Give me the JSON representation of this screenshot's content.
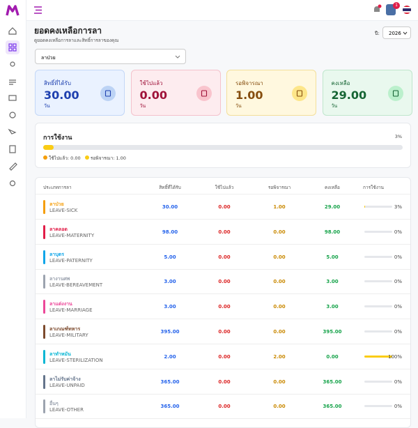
{
  "header": {
    "avatar_badge": "1"
  },
  "page": {
    "title": "ยอดคงเหลือการลา",
    "subtitle": "ดูยอดคงเหลือการลาและสิทธิ์การลาของคุณ",
    "year_label": "ปี:",
    "year": "2026",
    "leave_type_select": "ลาป่วย"
  },
  "cards": [
    {
      "label": "สิทธิ์ที่ได้รับ",
      "value": "30.00",
      "unit": "วัน",
      "color": "#1e40af",
      "bg": "#eaf2ff",
      "border": "#c3d7f7",
      "icon_bg": "#bcd3f5"
    },
    {
      "label": "ใช้ไปแล้ว",
      "value": "0.00",
      "unit": "วัน",
      "color": "#9f1239",
      "bg": "#fdecef",
      "border": "#f4c2cc",
      "icon_bg": "#f9c4cd"
    },
    {
      "label": "รอพิจารณา",
      "value": "1.00",
      "unit": "วัน",
      "color": "#854d0e",
      "bg": "#fff8df",
      "border": "#f3df9a",
      "icon_bg": "#fde68a"
    },
    {
      "label": "คงเหลือ",
      "value": "29.00",
      "unit": "วัน",
      "color": "#166534",
      "bg": "#e9f8ee",
      "border": "#bfe6cc",
      "icon_bg": "#bbf0cc"
    }
  ],
  "usage": {
    "title": "การใช้งาน",
    "percent": {
      "value": 3,
      "label": "3%"
    },
    "legend": [
      "ใช้ไปแล้ว: 0.00",
      "รอพิจารณา: 1.00"
    ]
  },
  "table": {
    "headers": [
      "ประเภทการลา",
      "สิทธิ์ที่ได้รับ",
      "ใช้ไปแล้ว",
      "รอพิจารณา",
      "คงเหลือ",
      "การใช้งาน"
    ],
    "rows": [
      {
        "name": "ลาป่วย",
        "code": "LEAVE-SICK",
        "entitled": "30.00",
        "used": "0.00",
        "pending": "1.00",
        "remaining": "29.00",
        "usage": {
          "value": 3,
          "label": "3%"
        },
        "color": "#f59e0b"
      },
      {
        "name": "ลาคลอด",
        "code": "LEAVE-MATERNITY",
        "entitled": "98.00",
        "used": "0.00",
        "pending": "0.00",
        "remaining": "98.00",
        "usage": {
          "value": 0,
          "label": "0%"
        },
        "color": "#e11d48"
      },
      {
        "name": "ลาบุตร",
        "code": "LEAVE-PATERNITY",
        "entitled": "5.00",
        "used": "0.00",
        "pending": "0.00",
        "remaining": "5.00",
        "usage": {
          "value": 0,
          "label": "0%"
        },
        "color": "#0ea5e9"
      },
      {
        "name": "ลางานศพ",
        "code": "LEAVE-BEREAVEMENT",
        "entitled": "3.00",
        "used": "0.00",
        "pending": "0.00",
        "remaining": "3.00",
        "usage": {
          "value": 0,
          "label": "0%"
        },
        "color": "#9ca3af"
      },
      {
        "name": "ลาแต่งงาน",
        "code": "LEAVE-MARRIAGE",
        "entitled": "3.00",
        "used": "0.00",
        "pending": "0.00",
        "remaining": "3.00",
        "usage": {
          "value": 0,
          "label": "0%"
        },
        "color": "#ec4899"
      },
      {
        "name": "ลาเกณฑ์ทหาร",
        "code": "LEAVE-MILITARY",
        "entitled": "395.00",
        "used": "0.00",
        "pending": "0.00",
        "remaining": "395.00",
        "usage": {
          "value": 0,
          "label": "0%"
        },
        "color": "#7c4a2d"
      },
      {
        "name": "ลาทำหมัน",
        "code": "LEAVE-STERILIZATION",
        "entitled": "2.00",
        "used": "0.00",
        "pending": "2.00",
        "remaining": "0.00",
        "usage": {
          "value": 100,
          "label": "100%"
        },
        "color": "#06b6d4"
      },
      {
        "name": "ลาไม่รับค่าจ้าง",
        "code": "LEAVE-UNPAID",
        "entitled": "365.00",
        "used": "0.00",
        "pending": "0.00",
        "remaining": "365.00",
        "usage": {
          "value": 0,
          "label": "0%"
        },
        "color": "#64748b"
      },
      {
        "name": "อื่นๆ",
        "code": "LEAVE-OTHER",
        "entitled": "365.00",
        "used": "0.00",
        "pending": "0.00",
        "remaining": "365.00",
        "usage": {
          "value": 0,
          "label": "0%"
        },
        "color": "#9ca3af"
      }
    ]
  }
}
